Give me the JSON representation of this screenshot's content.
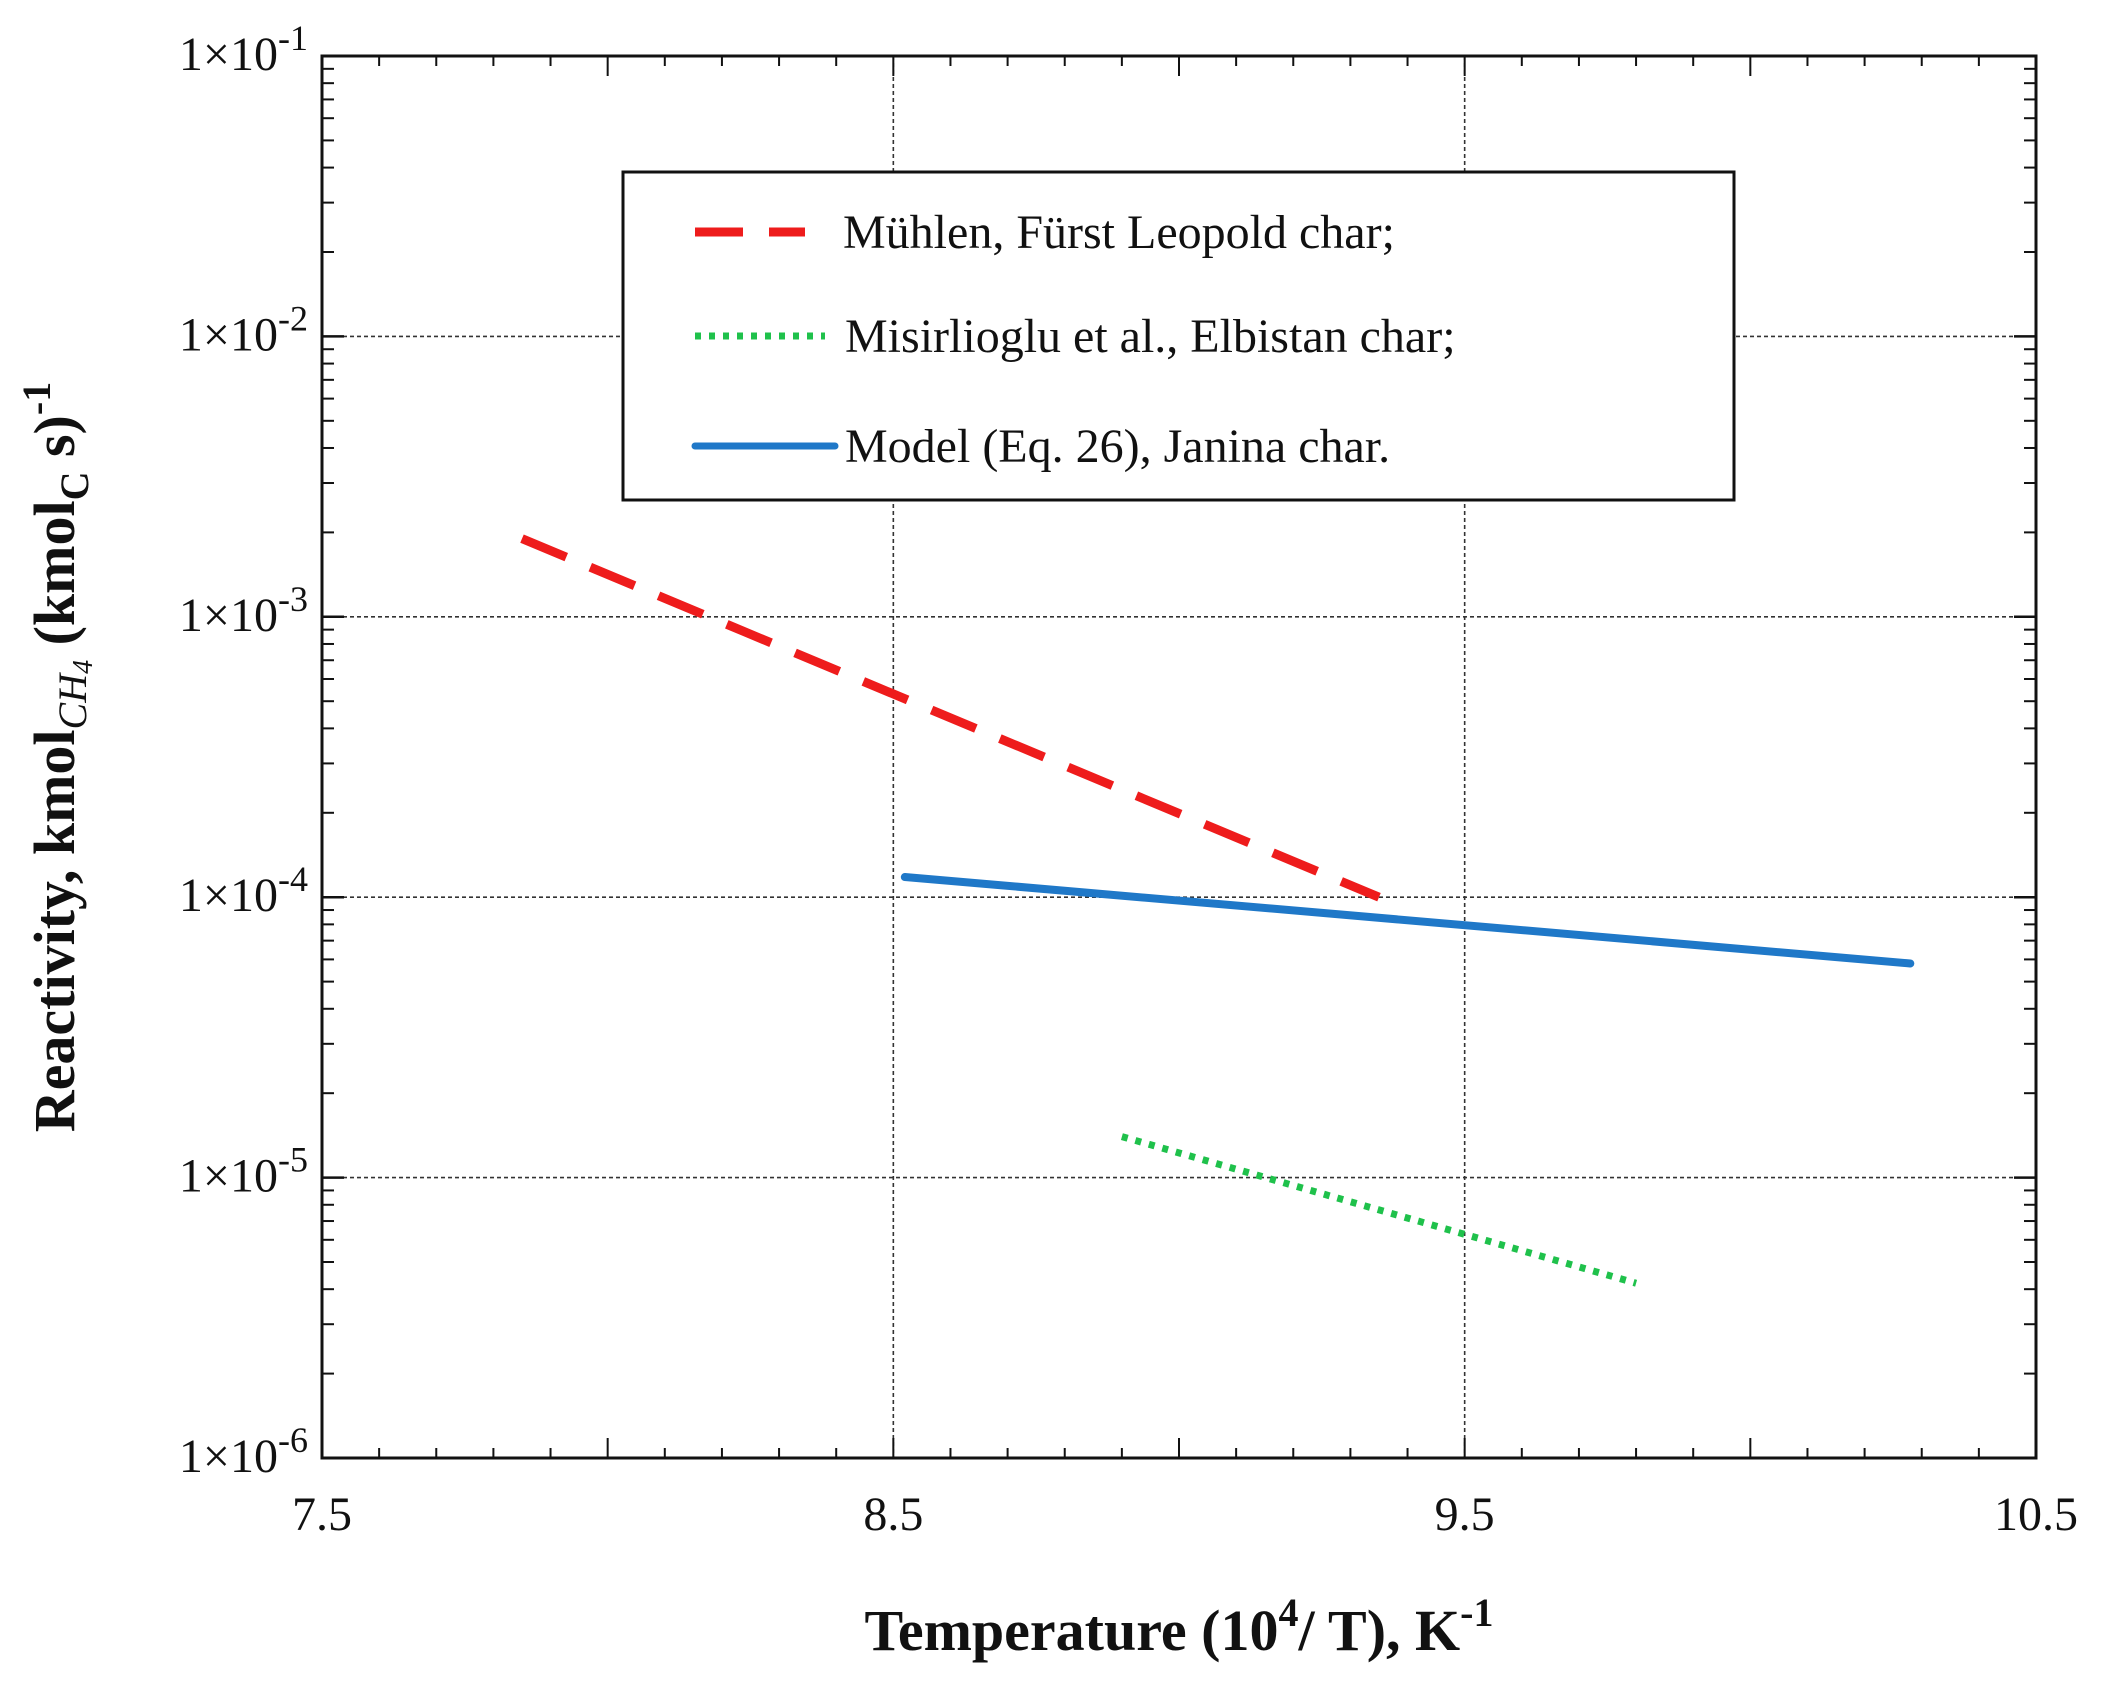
{
  "chart_data": {
    "type": "line",
    "title": "",
    "xlabel": {
      "main": "Temperature  (10",
      "sup": "4",
      "mid": "/ T), K",
      "sup2": "-1"
    },
    "ylabel": {
      "main": "Reactivity, kmol",
      "sub": "CH",
      "sub2": "4",
      "mid": " (kmol",
      "sub3": "C",
      "end": " s)",
      "sup": "-1"
    },
    "xlim": [
      7.5,
      10.5
    ],
    "ylim": [
      1e-06,
      0.1
    ],
    "yscale": "log",
    "grid": true,
    "x_ticks": [
      {
        "value": 7.5,
        "label": "7.5"
      },
      {
        "value": 8.5,
        "label": "8.5"
      },
      {
        "value": 9.5,
        "label": "9.5"
      },
      {
        "value": 10.5,
        "label": "10.5"
      }
    ],
    "y_ticks": [
      {
        "value": 0.1,
        "base": "1×10",
        "exp": "-1"
      },
      {
        "value": 0.01,
        "base": "1×10",
        "exp": "-2"
      },
      {
        "value": 0.001,
        "base": "1×10",
        "exp": "-3"
      },
      {
        "value": 0.0001,
        "base": "1×10",
        "exp": "-4"
      },
      {
        "value": 1e-05,
        "base": "1×10",
        "exp": "-5"
      },
      {
        "value": 1e-06,
        "base": "1×10",
        "exp": "-6"
      }
    ],
    "legend_position": "top-center",
    "series": [
      {
        "name": "Mühlen, Fürst Leopold char;",
        "style": "dashed",
        "color": "#ee1c1c",
        "x": [
          7.85,
          9.35
        ],
        "y": [
          0.0019,
          0.0001
        ]
      },
      {
        "name": "Misirlioglu et al., Elbistan char;",
        "style": "dotted",
        "color": "#1fc14b",
        "x": [
          8.9,
          9.8
        ],
        "y": [
          1.4e-05,
          4.2e-06
        ]
      },
      {
        "name": "Model (Eq. 26), Janina char.",
        "style": "solid",
        "color": "#1f78c8",
        "x": [
          8.52,
          10.28
        ],
        "y": [
          0.000118,
          5.8e-05
        ]
      }
    ]
  }
}
